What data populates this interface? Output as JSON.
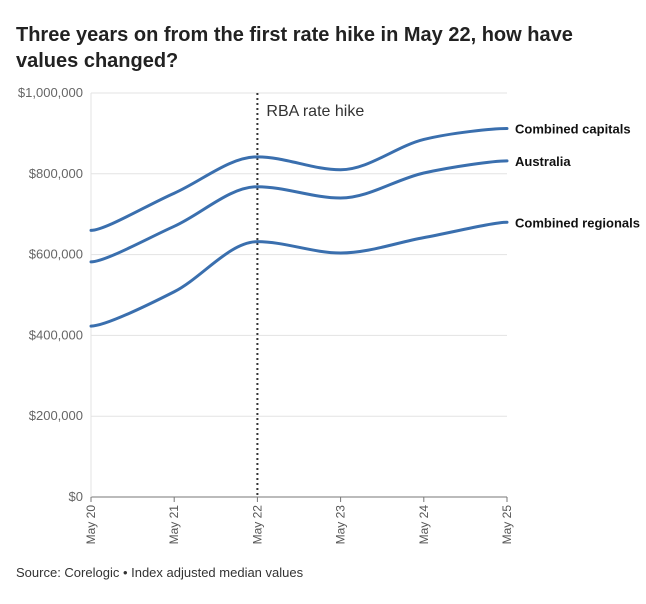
{
  "chart_data": {
    "type": "line",
    "title": "Three years on from the first rate hike in May 22, how have values changed?",
    "x": [
      "May 20",
      "May 21",
      "May 22",
      "May 23",
      "May 24",
      "May 25"
    ],
    "series": [
      {
        "name": "Combined capitals",
        "values": [
          660000,
          752000,
          842000,
          810000,
          885000,
          912000
        ],
        "color": "#3a6fae"
      },
      {
        "name": "Australia",
        "values": [
          582000,
          670000,
          768000,
          740000,
          802000,
          832000
        ],
        "color": "#3a6fae"
      },
      {
        "name": "Combined regionals",
        "values": [
          423000,
          508000,
          632000,
          604000,
          642000,
          680000
        ],
        "color": "#3a6fae"
      }
    ],
    "y_ticks": [
      "$0",
      "$200,000",
      "$400,000",
      "$600,000",
      "$800,000",
      "$1,000,000"
    ],
    "y_tick_values": [
      0,
      200000,
      400000,
      600000,
      800000,
      1000000
    ],
    "ylim": [
      0,
      1000000
    ],
    "grid": true,
    "annotation": {
      "text": "RBA rate hike",
      "x": "May 22"
    },
    "xlabel": "",
    "ylabel": ""
  },
  "source_text": "Source: Corelogic • Index adjusted median values"
}
